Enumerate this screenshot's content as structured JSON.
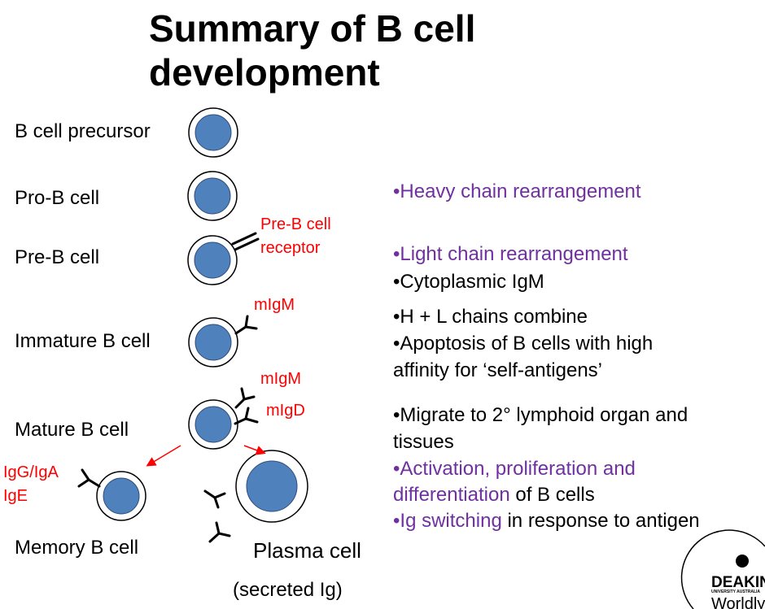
{
  "title": "Summary of B cell development",
  "stages": [
    "B cell precursor",
    "Pro-B cell",
    "Pre-B cell",
    "Immature B cell",
    "Mature B cell",
    "Memory B cell",
    "Plasma cell"
  ],
  "plasma_note": "(secreted Ig)",
  "annotations": {
    "pre_b_receptor": [
      "Pre-B cell",
      "receptor"
    ],
    "immature_migm": "mIgM",
    "mature_migm": "mIgM",
    "mature_migd": "mIgD",
    "memory_ig": [
      "IgG/IgA",
      "IgE"
    ]
  },
  "notes": [
    [
      {
        "text": "•Heavy chain rearrangement",
        "color": "#7030a0"
      }
    ],
    [
      {
        "text": "•Light chain rearrangement",
        "color": "#7030a0"
      }
    ],
    [
      {
        "text": "•Cytoplasmic IgM",
        "color": "#000000"
      }
    ],
    [
      {
        "text": "•H + L chains combine",
        "color": "#000000"
      }
    ],
    [
      {
        "text": "•Apoptosis of B cells with high",
        "color": "#000000"
      }
    ],
    [
      {
        "text": "affinity for ‘self-antigens’",
        "color": "#000000"
      }
    ],
    [
      {
        "text": "•Migrate to 2° lymphoid organ and",
        "color": "#000000"
      }
    ],
    [
      {
        "text": "tissues",
        "color": "#000000"
      }
    ],
    [
      {
        "text": "•Activation, proliferation and",
        "color": "#7030a0"
      }
    ],
    [
      {
        "text": "differentiation",
        "color": "#7030a0"
      },
      {
        "text": " of B cells",
        "color": "#000000"
      }
    ],
    [
      {
        "text": "•Ig switching",
        "color": "#7030a0"
      },
      {
        "text": " in response to antigen",
        "color": "#000000"
      }
    ]
  ],
  "logo": {
    "name": "DEAKIN",
    "sub": "UNIVERSITY AUSTRALIA",
    "tagline": "Worldly"
  }
}
